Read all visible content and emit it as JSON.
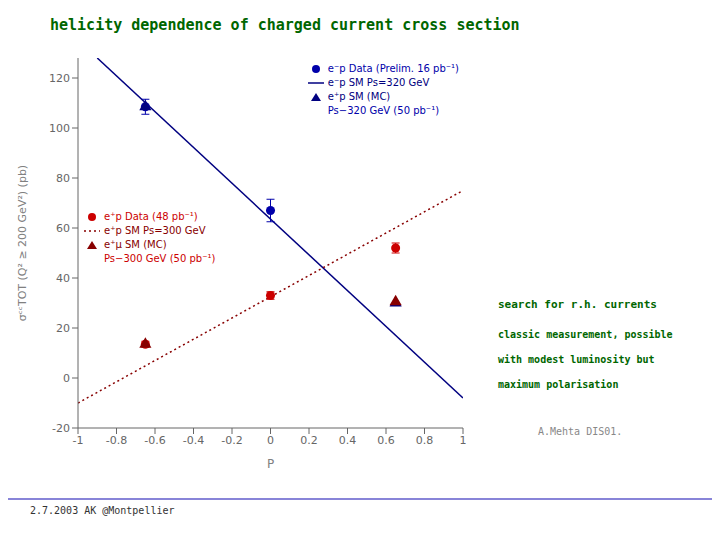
{
  "chart_data": {
    "type": "scatter",
    "title": "helicity  dependence of charged current cross section",
    "title_color": "#006600",
    "x_label": "P",
    "y_label": "σᶜᶜTOT (Q² ≥ 200 GeV²) (pb)",
    "xlim": [
      -1,
      1
    ],
    "xticks": [
      -1,
      -0.8,
      -0.6,
      -0.4,
      -0.2,
      0,
      0.2,
      0.4,
      0.6,
      0.8,
      1
    ],
    "ylim": [
      -20,
      128
    ],
    "yticks": [
      -20,
      0,
      20,
      40,
      60,
      80,
      100,
      120
    ],
    "grid": false,
    "series": [
      {
        "name": "e⁻p Data (Prelim. 16 pb⁻¹)",
        "type": "scatter",
        "marker": "circle",
        "color": "#0000AA",
        "x": [
          -0.65,
          0.0
        ],
        "values": [
          108.5,
          67.0
        ],
        "errors": [
          3.0,
          4.5
        ],
        "legend": "upper right"
      },
      {
        "name": "e⁻p SM Ps=320 GeV",
        "type": "line",
        "line_style": "solid",
        "color": "#000080",
        "x": [
          -0.9,
          1.0
        ],
        "values": [
          128,
          -8
        ],
        "legend": "upper right"
      },
      {
        "name": "e⁺p SM (MC)",
        "type": "scatter",
        "marker": "triangle",
        "color": "#000080",
        "x": [
          -0.65,
          0.65
        ],
        "values": [
          108.5,
          30.0
        ],
        "legend": "upper right"
      },
      {
        "name": "e⁺p Data (48 pb⁻¹)",
        "type": "scatter",
        "marker": "circle",
        "color": "#CC0000",
        "x": [
          -0.65,
          0.0,
          0.65
        ],
        "values": [
          13.5,
          33.0,
          52.0
        ],
        "errors": [
          1.2,
          1.5,
          2.0
        ],
        "legend": "lower left"
      },
      {
        "name": "e⁺p SM Ps=300 GeV",
        "type": "line",
        "line_style": "dotted",
        "color": "#880000",
        "x": [
          -1.0,
          1.0
        ],
        "values": [
          -10,
          75
        ],
        "legend": "lower left"
      },
      {
        "name": "e⁺μ SM (MC)",
        "type": "scatter",
        "marker": "triangle",
        "color": "#880000",
        "x": [
          -0.65,
          0.65
        ],
        "values": [
          13.5,
          30.5
        ],
        "legend": "lower left"
      }
    ],
    "legend_notes": [
      {
        "text": "Ps−320 GeV (50 pb⁻¹)",
        "legend": "upper right"
      },
      {
        "text": "Ps−300 GeV (50 pb⁻¹)",
        "legend": "lower left"
      }
    ],
    "annotations": [
      {
        "text": "search for r.h. currents",
        "color": "#006600"
      },
      {
        "text": "classic measurement, possible",
        "color": "#006600"
      },
      {
        "text": "with modest luminosity but",
        "color": "#006600"
      },
      {
        "text": "maximum polarisation",
        "color": "#006600"
      },
      {
        "text": "A.Mehta DIS01.",
        "color": "#888888"
      }
    ],
    "footer": "2.7.2003 AK @Montpellier"
  }
}
